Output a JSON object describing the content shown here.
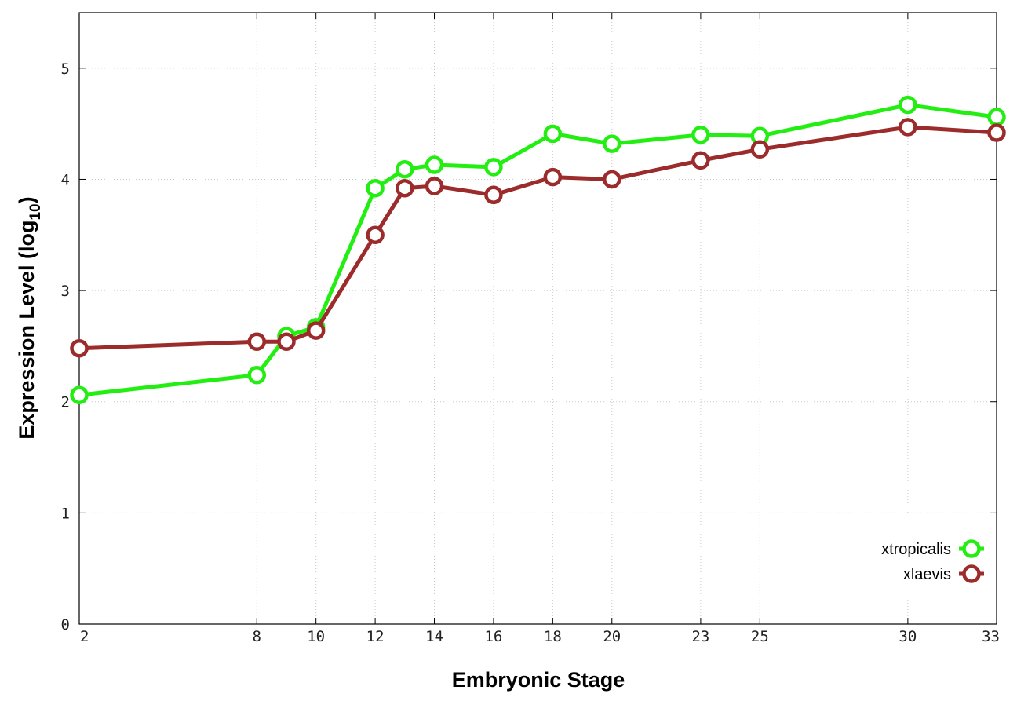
{
  "chart_data": {
    "type": "line",
    "xlabel": "Embryonic Stage",
    "ylabel_main": "Expression Level (log",
    "ylabel_sub": "10",
    "ylabel_close": ")",
    "x_ticks": [
      2,
      8,
      10,
      12,
      14,
      16,
      18,
      20,
      23,
      25,
      30,
      33
    ],
    "y_ticks": [
      0,
      1,
      2,
      3,
      4,
      5
    ],
    "xlim": [
      2,
      33
    ],
    "ylim": [
      0,
      5.5
    ],
    "grid": true,
    "legend_position": "bottom-right",
    "x": [
      2,
      8,
      9,
      10,
      12,
      13,
      14,
      16,
      18,
      20,
      23,
      25,
      30,
      33
    ],
    "series": [
      {
        "name": "xtropicalis",
        "color": "#22ee11",
        "values": [
          2.06,
          2.24,
          2.59,
          2.67,
          3.92,
          4.09,
          4.13,
          4.11,
          4.41,
          4.32,
          4.4,
          4.39,
          4.67,
          4.56
        ]
      },
      {
        "name": "xlaevis",
        "color": "#9c2b2b",
        "values": [
          2.48,
          2.54,
          2.54,
          2.64,
          3.5,
          3.92,
          3.94,
          3.86,
          4.02,
          4.0,
          4.17,
          4.27,
          4.47,
          4.42
        ]
      }
    ]
  }
}
